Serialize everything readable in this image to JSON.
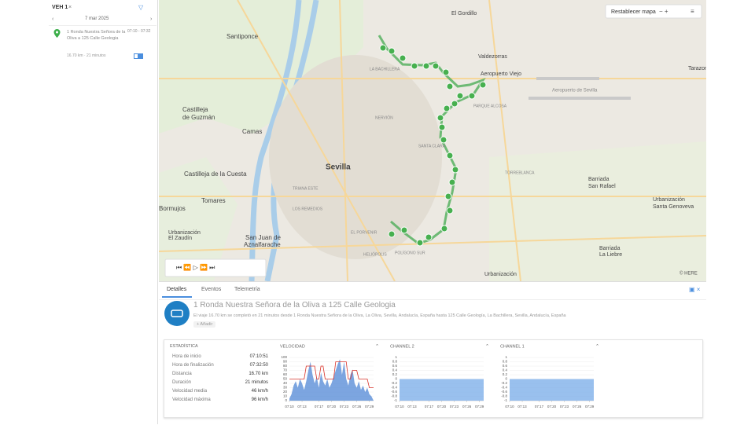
{
  "sidebar": {
    "vehicle": "VEH 1",
    "date": "7 mar 2025",
    "trip": {
      "title": "1 Ronda Nuestra Señora de la Oliva a 125 Calle Geologia",
      "time": "07:10 - 07:32",
      "summary": "16.70 km · 21 minutos"
    }
  },
  "map": {
    "reset": "Restablecer mapa",
    "credit": "© HERE",
    "labels": [
      "El Gordillo",
      "Valdezorras",
      "Aeropuerto Viejo",
      "Aeropuerto de Sevilla",
      "Tarazona",
      "Santiponce",
      "Castilleja",
      "de Guzmán",
      "Camas",
      "Sevilla",
      "Castilleja de la Cuesta",
      "Tomares",
      "Bormujos",
      "Urbanización",
      "El Zaudín",
      "San Juan de",
      "Aznalfarache",
      "Barriada",
      "San Rafael",
      "Urbanización",
      "Santa Genoveva",
      "Barriada",
      "La Liebre",
      "Urbanización",
      "TRIANA ESTE",
      "LOS REMEDIOS",
      "NERVIÓN",
      "SANTA CLARA",
      "POLÍGONO SUR",
      "LA BACHILLERA",
      "EL PORVENIR",
      "HELIÓPOLIS",
      "TORREBLANCA",
      "PARQUE ALCOSA"
    ]
  },
  "tabs": [
    "Detalles",
    "Eventos",
    "Telemetría"
  ],
  "trip": {
    "title": "1 Ronda Nuestra Señora de la Oliva a 125 Calle Geologia",
    "description": "El viaje 16.70 km se completó en 21 minutos desde 1 Ronda Nuestra Señora de la Oliva, La Oliva, Sevilla, Andalucía, España hasta 125 Calle Geología, La Bachillera, Sevilla, Andalucía, España",
    "add": "+ Añadir"
  },
  "stats": {
    "title": "ESTADÍSTICA",
    "rows": [
      [
        "Hora de inicio",
        "07:10:51"
      ],
      [
        "Hora de finalización",
        "07:32:50"
      ],
      [
        "Distancia",
        "16.70 km"
      ],
      [
        "Duración",
        "21 minutos"
      ],
      [
        "Velocidad media",
        "46 km/h"
      ],
      [
        "Velocidad máxima",
        "96 km/h"
      ]
    ]
  },
  "charts": [
    {
      "type": "area",
      "title": "VELOCIDAD",
      "x": [
        0,
        0.5,
        1,
        1.5,
        2,
        2.5,
        3,
        3.5,
        4,
        4.5,
        5,
        5.5,
        6,
        6.5,
        7,
        7.5,
        8,
        8.5,
        9,
        9.5,
        10,
        10.5,
        11,
        11.5,
        12,
        12.5,
        13,
        13.5,
        14,
        14.5,
        15,
        15.5,
        16,
        16.5,
        17,
        17.5,
        18,
        18.5,
        19,
        19.5,
        20
      ],
      "series": [
        {
          "style": "area",
          "color": "#5b8fd8",
          "values": [
            5,
            15,
            35,
            45,
            30,
            50,
            40,
            25,
            45,
            70,
            90,
            60,
            40,
            55,
            30,
            65,
            45,
            35,
            50,
            30,
            40,
            55,
            70,
            85,
            96,
            60,
            90,
            50,
            35,
            60,
            72,
            40,
            30,
            45,
            25,
            35,
            20,
            30,
            15,
            10,
            0
          ]
        },
        {
          "style": "line",
          "color": "#d9342b",
          "values": [
            50,
            50,
            50,
            50,
            50,
            50,
            50,
            50,
            80,
            80,
            80,
            80,
            80,
            50,
            50,
            80,
            80,
            50,
            50,
            50,
            50,
            50,
            90,
            90,
            90,
            90,
            90,
            90,
            50,
            50,
            70,
            70,
            70,
            50,
            50,
            50,
            50,
            50,
            30,
            30,
            30
          ]
        }
      ],
      "xlim": [
        0,
        20
      ],
      "xticks": [
        {
          "value": 0,
          "label": "07:10"
        },
        {
          "value": 3,
          "label": "07:13"
        },
        {
          "value": 7,
          "label": "07:17"
        },
        {
          "value": 10,
          "label": "07:20"
        },
        {
          "value": 13,
          "label": "07:23"
        },
        {
          "value": 16,
          "label": "07:26"
        },
        {
          "value": 19,
          "label": "07:29"
        }
      ],
      "ylim": [
        0,
        100
      ],
      "yticks": [
        0,
        10,
        20,
        30,
        40,
        50,
        60,
        70,
        80,
        90,
        100
      ],
      "grid": true
    },
    {
      "type": "area",
      "title": "CHANNEL 2",
      "x": [
        0,
        20
      ],
      "series": [
        {
          "style": "area",
          "color": "#7fb0ea",
          "values": [
            0,
            0
          ]
        }
      ],
      "xlim": [
        0,
        20
      ],
      "xticks": [
        {
          "value": 0,
          "label": "07:10"
        },
        {
          "value": 3,
          "label": "07:13"
        },
        {
          "value": 7,
          "label": "07:17"
        },
        {
          "value": 10,
          "label": "07:20"
        },
        {
          "value": 13,
          "label": "07:23"
        },
        {
          "value": 16,
          "label": "07:26"
        },
        {
          "value": 19,
          "label": "07:29"
        }
      ],
      "ylim": [
        -1,
        1
      ],
      "yticks": [
        -1,
        -0.8,
        -0.6,
        -0.4,
        -0.2,
        0,
        0.2,
        0.4,
        0.6,
        0.8,
        1
      ],
      "grid": true
    },
    {
      "type": "area",
      "title": "CHANNEL 1",
      "x": [
        0,
        20
      ],
      "series": [
        {
          "style": "area",
          "color": "#7fb0ea",
          "values": [
            0,
            0
          ]
        }
      ],
      "xlim": [
        0,
        20
      ],
      "xticks": [
        {
          "value": 0,
          "label": "07:10"
        },
        {
          "value": 3,
          "label": "07:13"
        },
        {
          "value": 7,
          "label": "07:17"
        },
        {
          "value": 10,
          "label": "07:20"
        },
        {
          "value": 13,
          "label": "07:23"
        },
        {
          "value": 16,
          "label": "07:26"
        },
        {
          "value": 19,
          "label": "07:29"
        }
      ],
      "ylim": [
        -1,
        1
      ],
      "yticks": [
        -1,
        -0.8,
        -0.6,
        -0.4,
        -0.2,
        0,
        0.2,
        0.4,
        0.6,
        0.8,
        1
      ],
      "grid": true
    }
  ]
}
